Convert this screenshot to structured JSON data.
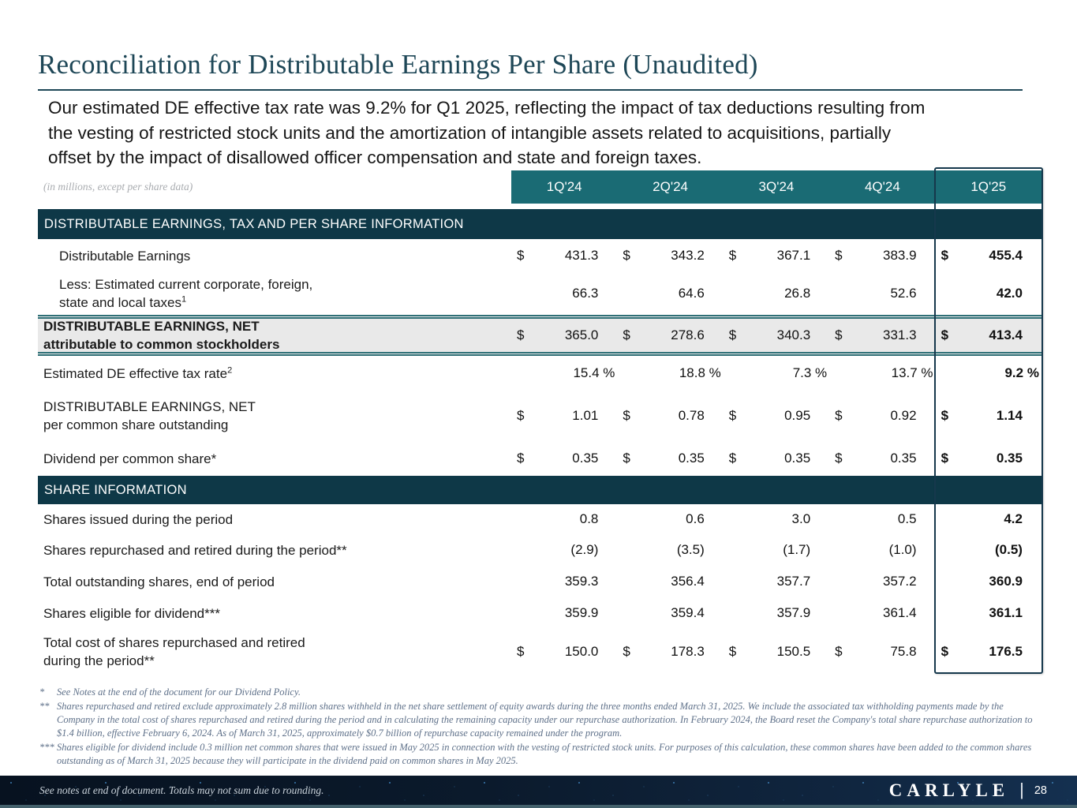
{
  "page": {
    "title": "Reconciliation for Distributable Earnings Per Share (Unaudited)",
    "intro_lines": [
      "Our estimated DE effective tax rate was 9.2% for Q1 2025, reflecting the impact of tax deductions resulting from",
      "the vesting of restricted stock units and the amortization of intangible assets related to acquisitions, partially",
      "offset by the impact of disallowed officer compensation and state and foreign taxes."
    ]
  },
  "colors": {
    "title": "#1E4757",
    "quarter_band": "#1A6B74",
    "section_bar": "#0E3847",
    "highlight_row_bg": "#E9E9E9",
    "double_border": "#2F7077",
    "box_border": "#16384C",
    "footer_bg": "#0B1A2B"
  },
  "table": {
    "units_note": "(in millions, except per share data)",
    "columns": [
      "1Q'24",
      "2Q'24",
      "3Q'24",
      "4Q'24",
      "1Q'25"
    ],
    "section1": {
      "label": "DISTRIBUTABLE EARNINGS, TAX AND PER SHARE INFORMATION"
    },
    "section2": {
      "label": "SHARE INFORMATION"
    },
    "rows": {
      "de": {
        "l1": "Distributable Earnings",
        "cur": "$",
        "v": [
          "431.3",
          "343.2",
          "367.1",
          "383.9",
          "455.4"
        ]
      },
      "taxes": {
        "l1": "Less: Estimated current corporate, foreign,",
        "l2": "state and local taxes",
        "sup": "1",
        "v": [
          "66.3",
          "64.6",
          "26.8",
          "52.6",
          "42.0"
        ]
      },
      "de_net": {
        "l1": "DISTRIBUTABLE EARNINGS, NET",
        "l2": "attributable to common stockholders",
        "cur": "$",
        "v": [
          "365.0",
          "278.6",
          "340.3",
          "331.3",
          "413.4"
        ]
      },
      "tax_rate": {
        "l1": "Estimated DE effective tax rate",
        "sup": "2",
        "v": [
          "15.4 %",
          "18.8 %",
          "7.3 %",
          "13.7 %",
          "9.2 %"
        ]
      },
      "de_per_share": {
        "l1": "DISTRIBUTABLE EARNINGS, NET",
        "l2": "per common share outstanding",
        "cur": "$",
        "v": [
          "1.01",
          "0.78",
          "0.95",
          "0.92",
          "1.14"
        ]
      },
      "dividend": {
        "l1": "Dividend per common share*",
        "cur": "$",
        "v": [
          "0.35",
          "0.35",
          "0.35",
          "0.35",
          "0.35"
        ]
      },
      "issued": {
        "l1": "Shares issued during the period",
        "v": [
          "0.8",
          "0.6",
          "3.0",
          "0.5",
          "4.2"
        ]
      },
      "repurchased": {
        "l1": "Shares repurchased and retired during the period**",
        "v": [
          "(2.9)",
          "(3.5)",
          "(1.7)",
          "(1.0)",
          "(0.5)"
        ]
      },
      "outstanding": {
        "l1": "Total outstanding shares, end of period",
        "v": [
          "359.3",
          "356.4",
          "357.7",
          "357.2",
          "360.9"
        ]
      },
      "eligible": {
        "l1": "Shares eligible for dividend***",
        "v": [
          "359.9",
          "359.4",
          "357.9",
          "361.4",
          "361.1"
        ]
      },
      "repurchase_cost": {
        "l1": "Total cost of shares repurchased and retired",
        "l2": "during the period**",
        "cur": "$",
        "v": [
          "150.0",
          "178.3",
          "150.5",
          "75.8",
          "176.5"
        ]
      }
    }
  },
  "footnotes": [
    {
      "marker": "*",
      "text": "See Notes at the end of the document for our Dividend Policy."
    },
    {
      "marker": "**",
      "text": "Shares repurchased and retired exclude approximately 2.8 million shares withheld in the net share settlement of equity awards during the three months ended March 31, 2025. We include the associated tax withholding payments made by the Company in the total cost of shares repurchased and retired during the period and in calculating the remaining capacity under our repurchase authorization. In February 2024, the Board reset the Company's total share repurchase authorization to $1.4 billion, effective February 6, 2024. As of March 31, 2025, approximately $0.7 billion of repurchase capacity remained under the program."
    },
    {
      "marker": "***",
      "text": "Shares eligible for dividend include 0.3 million net common shares that were issued in May 2025 in connection with the vesting of restricted stock units. For purposes of this calculation, these common shares have been added to the common shares outstanding as of March 31, 2025 because they will participate in the dividend paid on common shares in May 2025."
    }
  ],
  "footer": {
    "note": "See notes at end of document. Totals may not sum due to rounding.",
    "brand": "CARLYLE",
    "divider": "|",
    "page": "28"
  }
}
